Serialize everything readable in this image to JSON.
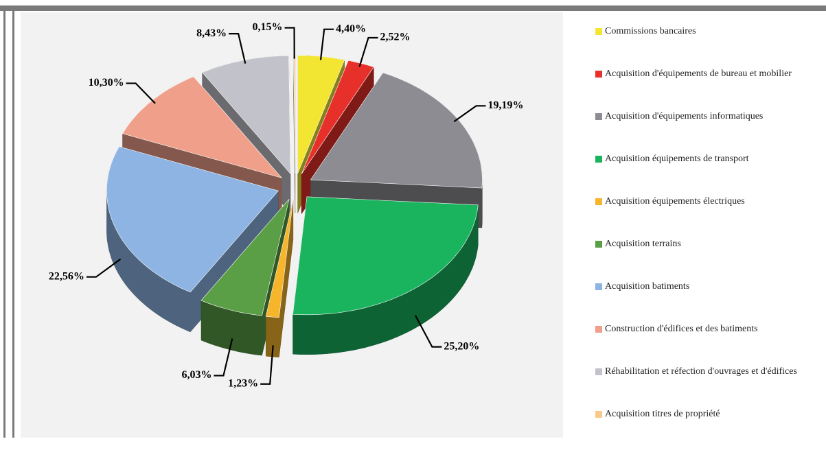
{
  "chart_data": {
    "type": "pie",
    "categories": [
      "Commissions bancaires",
      "Acquisition d'équipements de bureau et mobilier",
      "Acquisition d'équipements informatiques",
      "Acquisition équipements de transport",
      "Acquisition équipements électriques",
      "Acquisition terrains",
      "Acquisition batiments",
      "Construction d'édifices et des batiments",
      "Réhabilitation et réfection d'ouvrages et d'édifices",
      "Acquisition titres de propriété"
    ],
    "values": [
      4.4,
      2.52,
      19.19,
      25.2,
      1.23,
      6.03,
      22.56,
      10.3,
      8.43,
      0.15
    ],
    "value_labels": [
      "4,40%",
      "2,52%",
      "19,19%",
      "25,20%",
      "1,23%",
      "6,03%",
      "22,56%",
      "10,30%",
      "8,43%",
      "0,15%"
    ],
    "colors": [
      "#f2e632",
      "#e8302a",
      "#8c8c92",
      "#1ab45e",
      "#f6b52a",
      "#5a9e46",
      "#8eb4e3",
      "#f0a08a",
      "#c2c2ca",
      "#f9c98a"
    ],
    "legend": "right"
  }
}
